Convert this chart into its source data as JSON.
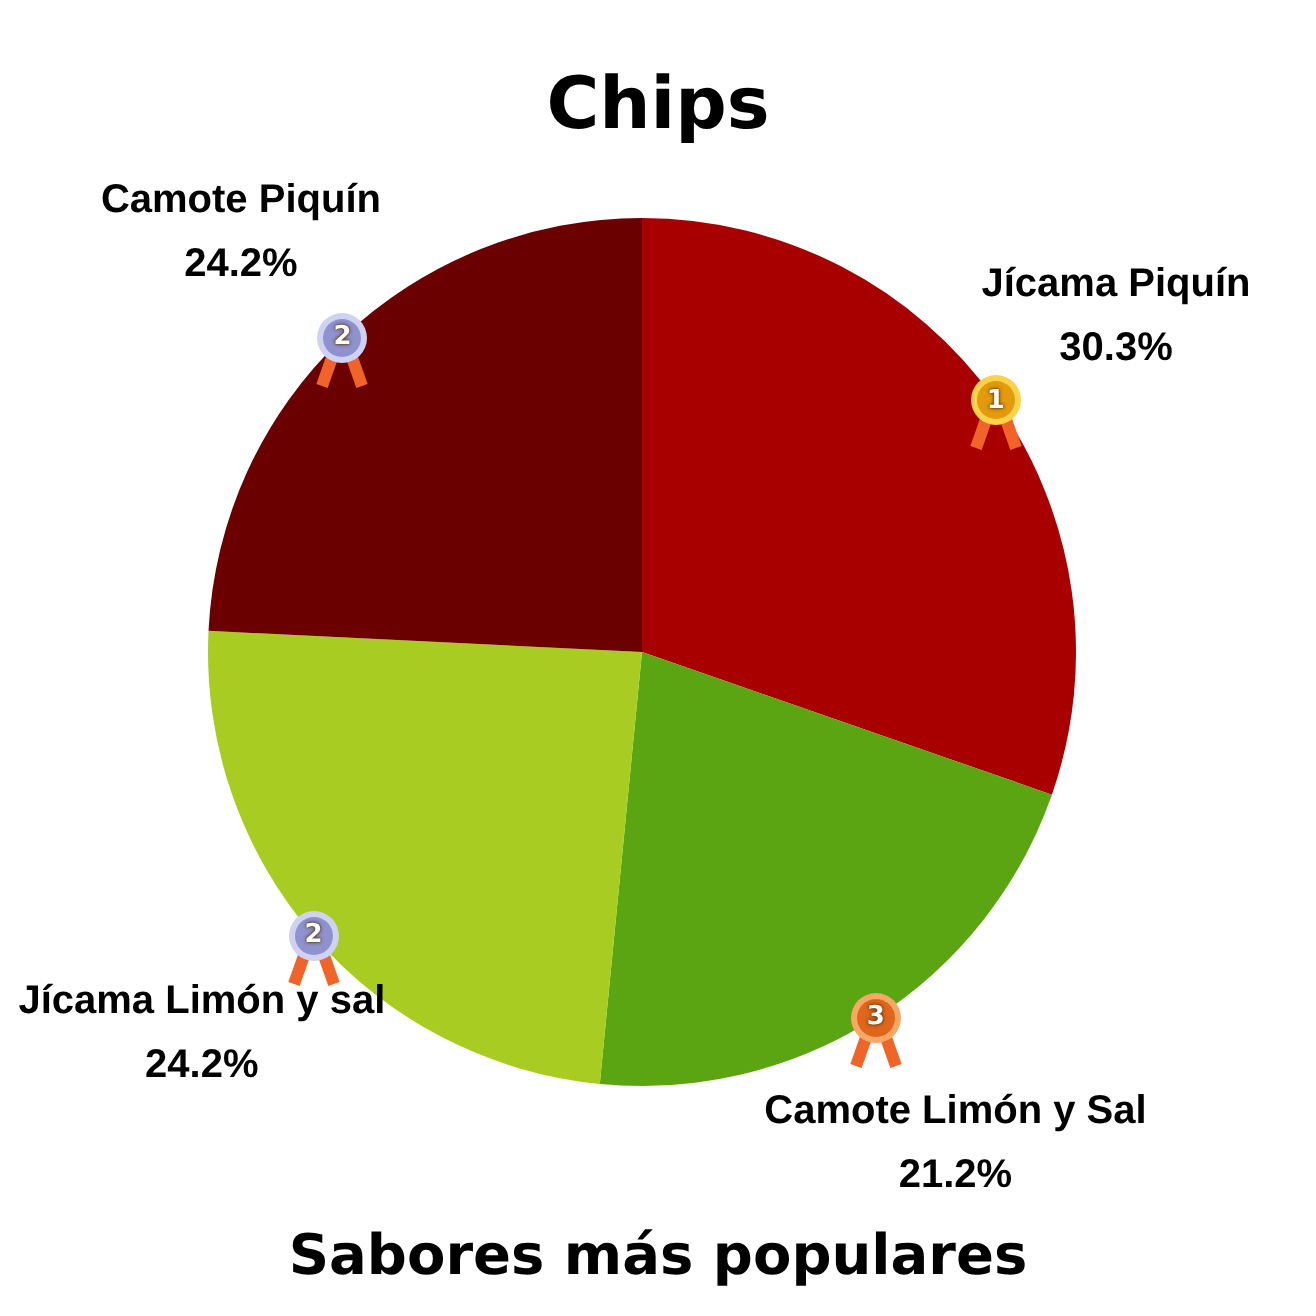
{
  "chart_data": {
    "type": "pie",
    "title": "Chips",
    "subtitle": "Sabores más populares",
    "categories": [
      "Jícama Piquín",
      "Camote Limón y Sal",
      "Jícama Limón y sal",
      "Camote Piquín"
    ],
    "values": [
      30.3,
      21.2,
      24.2,
      24.2
    ],
    "colors": [
      "#a80000",
      "#5ba512",
      "#a8cc22",
      "#6b0000"
    ],
    "value_labels": [
      "30.3%",
      "21.2%",
      "24.2%",
      "24.2%"
    ],
    "annotations": [
      {
        "text": "1",
        "x": "Jícama Piquín"
      },
      {
        "text": "3",
        "x": "Camote Limón y Sal"
      },
      {
        "text": "2",
        "x": "Jícama Limón y sal"
      },
      {
        "text": "2",
        "x": "Camote Piquín"
      }
    ],
    "legend": false
  }
}
